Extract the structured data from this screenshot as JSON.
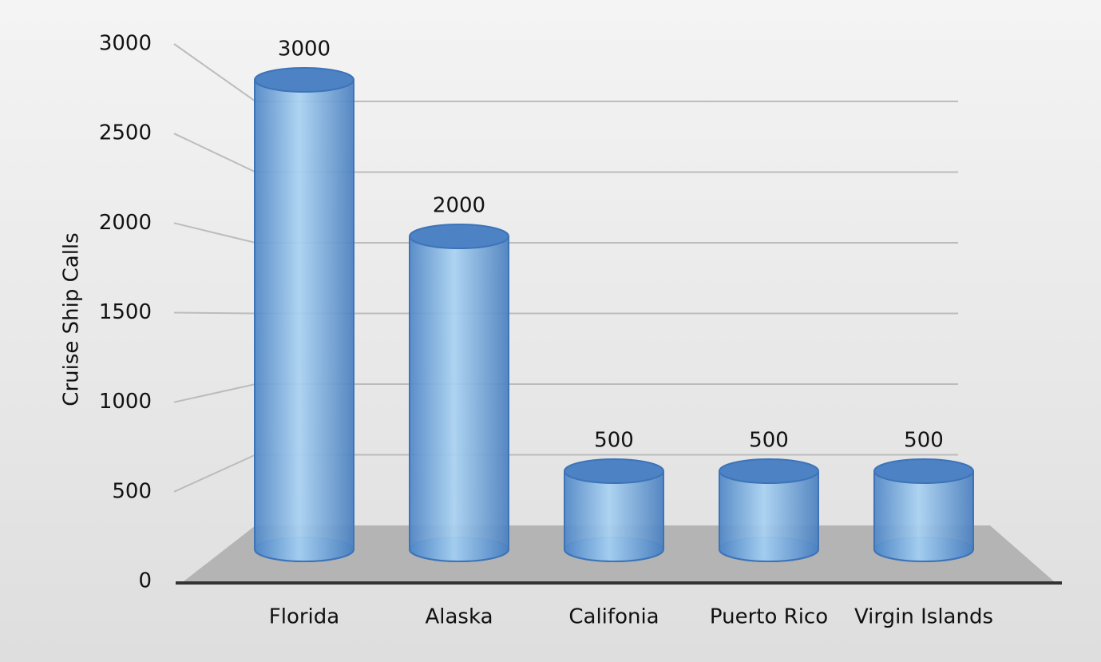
{
  "chart_data": {
    "type": "bar",
    "y_label": "Cruise Ship Calls",
    "categories": [
      "Florida",
      "Alaska",
      "Califonia",
      "Puerto Rico",
      "Virgin Islands"
    ],
    "values": [
      3000,
      2000,
      500,
      500,
      500
    ],
    "color": "#6fa4dc",
    "ylim": [
      0,
      3000
    ],
    "yticks": [
      0,
      500,
      1000,
      1500,
      2000,
      2500,
      3000
    ],
    "grid": true
  }
}
